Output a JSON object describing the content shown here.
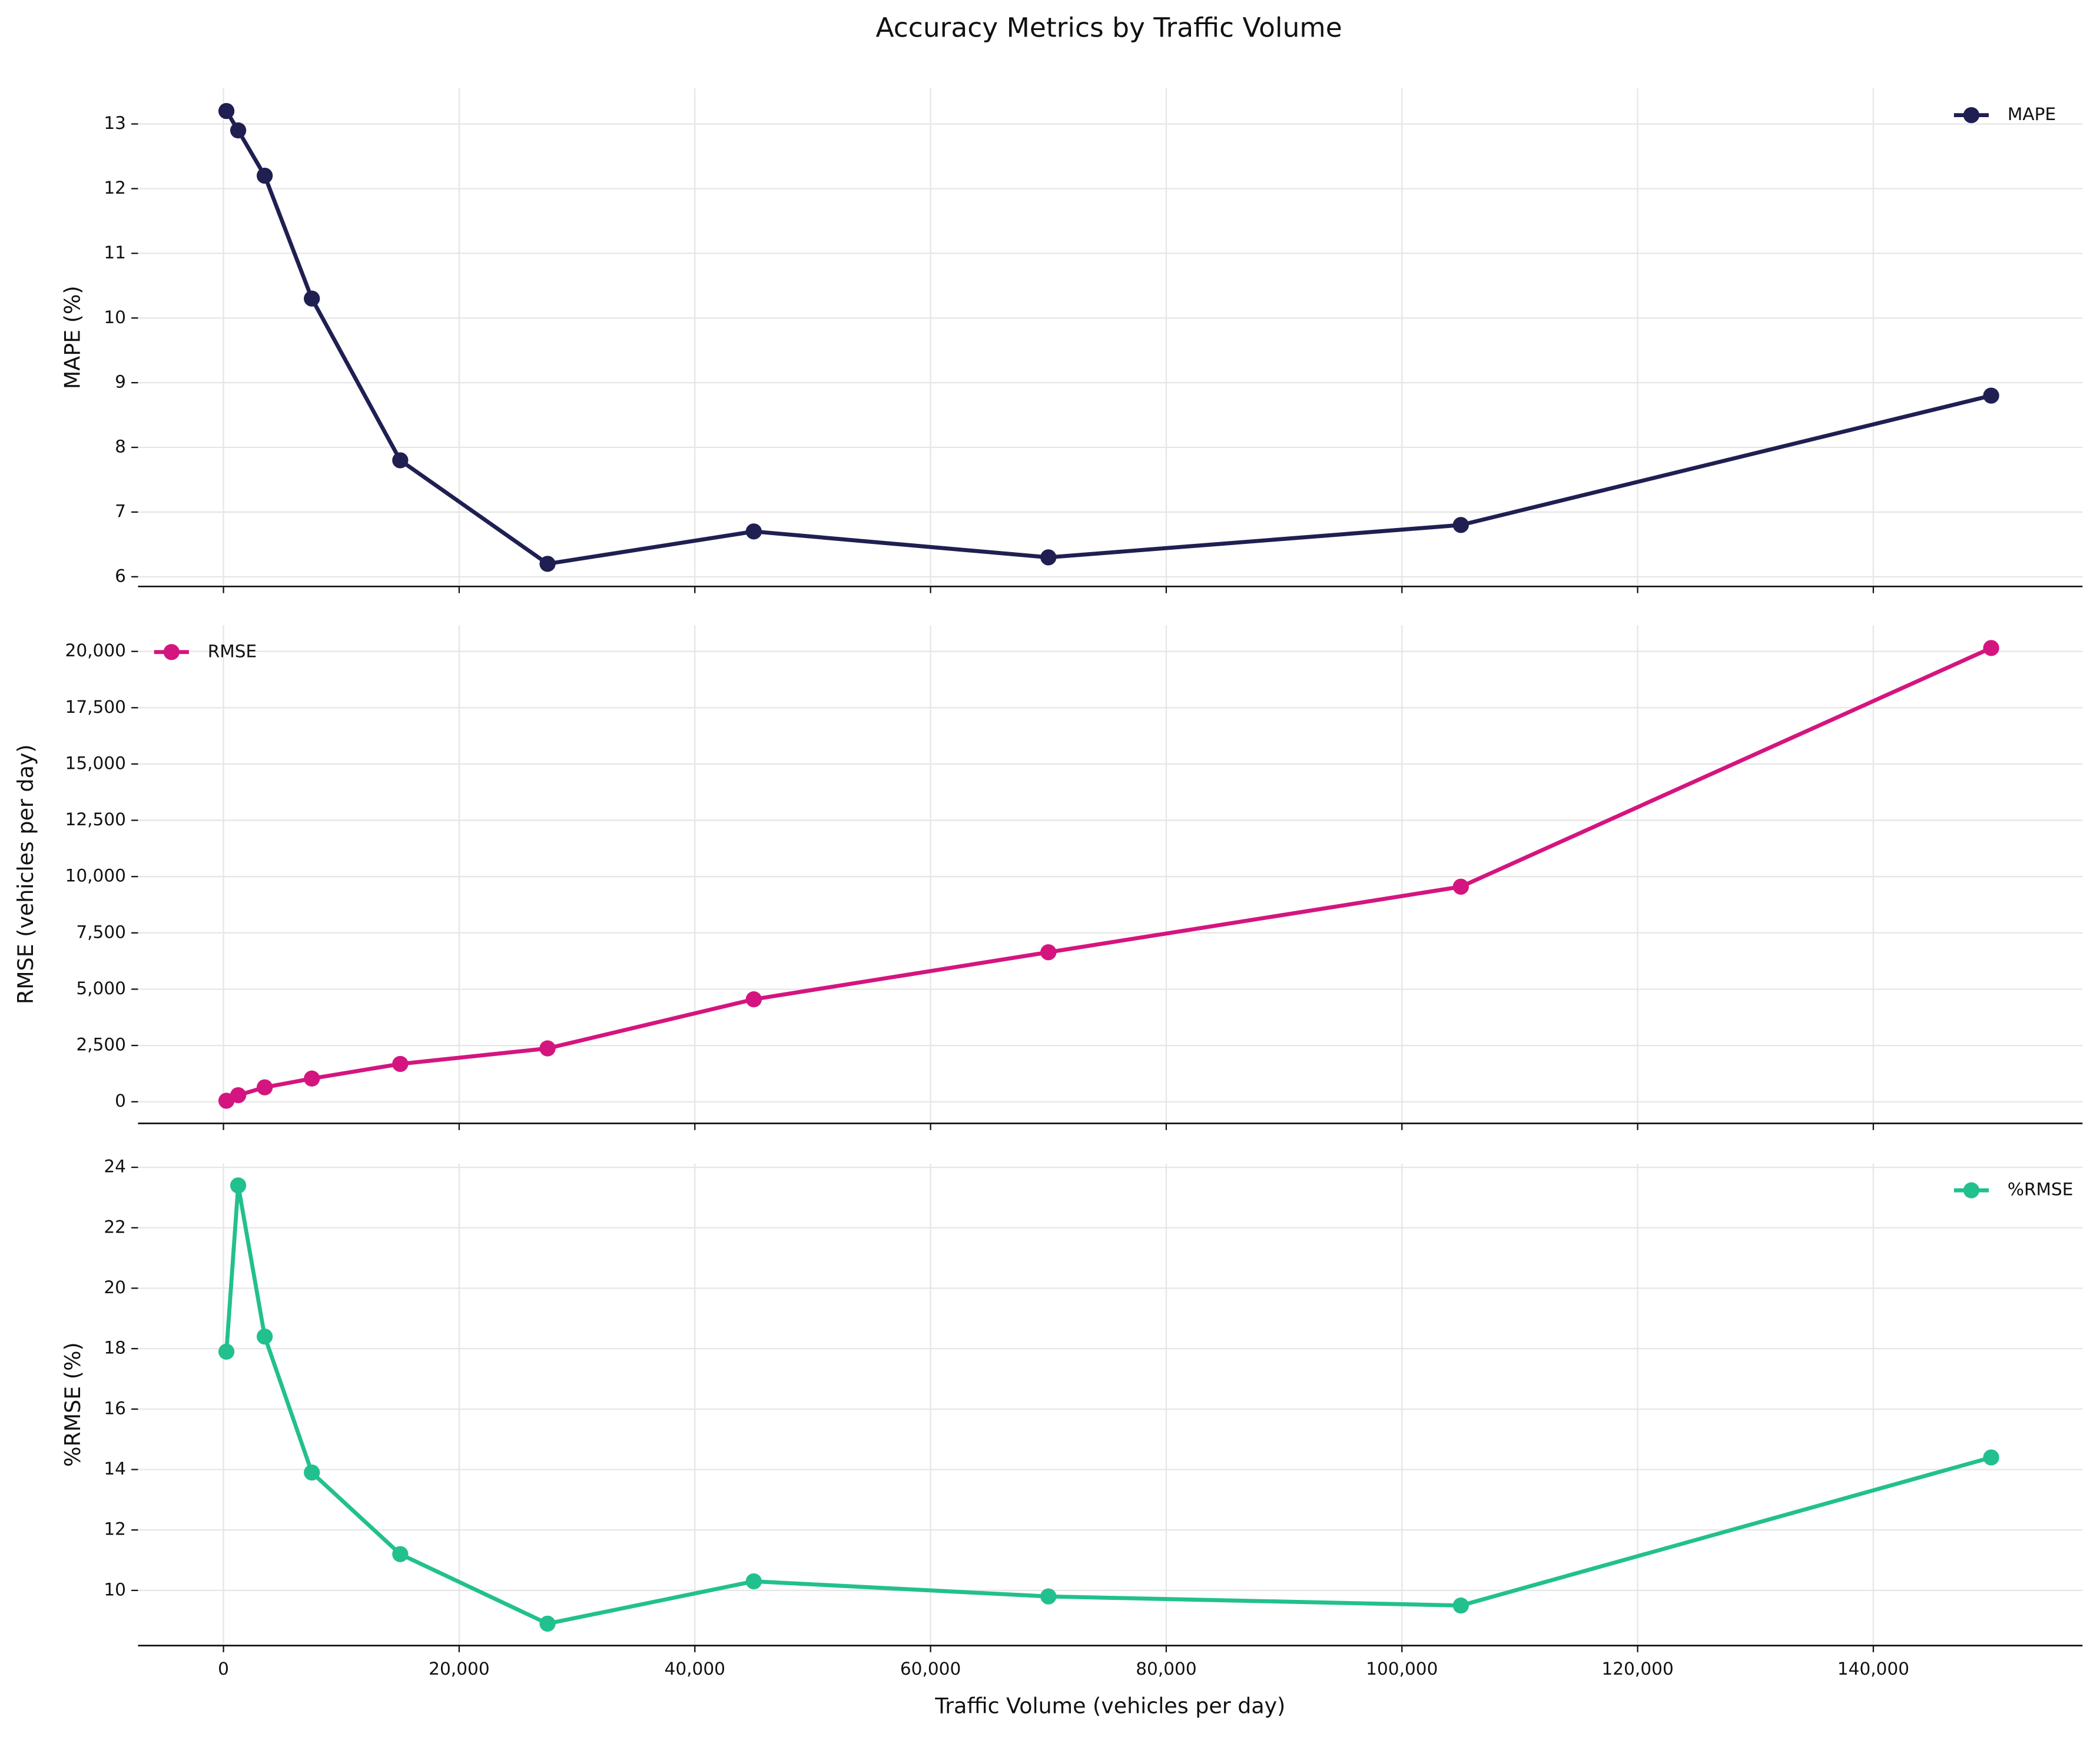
{
  "chart_data": [
    {
      "type": "line",
      "title": "Accuracy Metrics by Traffic Volume",
      "y_label": "MAPE (%)",
      "x": [
        250,
        1250,
        3500,
        7500,
        15000,
        27500,
        45000,
        70000,
        105000,
        150000
      ],
      "series": [
        {
          "name": "MAPE",
          "color": "#1f1f52",
          "values": [
            13.2,
            12.9,
            12.2,
            10.3,
            7.8,
            6.2,
            6.7,
            6.3,
            6.8,
            8.8
          ]
        }
      ],
      "xlim": [
        -7250,
        157750
      ],
      "ylim": [
        5.85,
        13.55
      ],
      "yticks": [
        6,
        7,
        8,
        9,
        10,
        11,
        12,
        13
      ],
      "grid": true,
      "legend": "upper right"
    },
    {
      "type": "line",
      "y_label": "RMSE (vehicles per day)",
      "x": [
        250,
        1250,
        3500,
        7500,
        15000,
        27500,
        45000,
        70000,
        105000,
        150000
      ],
      "series": [
        {
          "name": "RMSE",
          "color": "#d4157f",
          "values": [
            45,
            290,
            640,
            1030,
            1680,
            2370,
            4550,
            6640,
            9550,
            20150
          ]
        }
      ],
      "xlim": [
        -7250,
        157750
      ],
      "ylim": [
        -960,
        21160
      ],
      "yticks": [
        0,
        {
          "value": 2500,
          "label": "2,500"
        },
        {
          "value": 5000,
          "label": "5,000"
        },
        {
          "value": 7500,
          "label": "7,500"
        },
        {
          "value": 10000,
          "label": "10,000"
        },
        {
          "value": 12500,
          "label": "12,500"
        },
        {
          "value": 15000,
          "label": "15,000"
        },
        {
          "value": 17500,
          "label": "17,500"
        },
        {
          "value": 20000,
          "label": "20,000"
        }
      ],
      "grid": true,
      "legend": "upper left"
    },
    {
      "type": "line",
      "y_label": "%RMSE (%)",
      "x_label": "Traffic Volume (vehicles per day)",
      "x": [
        250,
        1250,
        3500,
        7500,
        15000,
        27500,
        45000,
        70000,
        105000,
        150000
      ],
      "series": [
        {
          "name": "%RMSE",
          "color": "#22c08e",
          "values": [
            17.9,
            23.4,
            18.4,
            13.9,
            11.2,
            8.9,
            10.3,
            9.8,
            9.5,
            14.4
          ]
        }
      ],
      "xlim": [
        -7250,
        157750
      ],
      "ylim": [
        8.175,
        24.125
      ],
      "yticks": [
        10,
        12,
        14,
        16,
        18,
        20,
        22,
        24
      ],
      "xticks": [
        0,
        {
          "value": 20000,
          "label": "20,000"
        },
        {
          "value": 40000,
          "label": "40,000"
        },
        {
          "value": 60000,
          "label": "60,000"
        },
        {
          "value": 80000,
          "label": "80,000"
        },
        {
          "value": 100000,
          "label": "100,000"
        },
        {
          "value": 120000,
          "label": "120,000"
        },
        {
          "value": 140000,
          "label": "140,000"
        }
      ],
      "grid": true,
      "legend": "upper right"
    }
  ]
}
